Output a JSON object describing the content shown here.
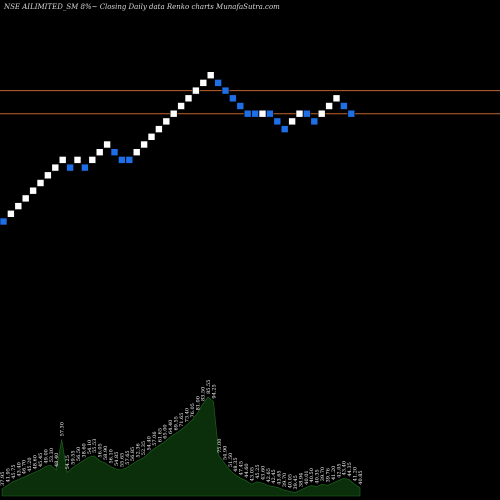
{
  "chart_data": {
    "type": "renko",
    "title": "NSE AILIMITED_SM 8%~   Closing Daily data  Renko  charts MunafaSutra.com",
    "colors": {
      "background": "#000000",
      "up_brick": "#ffffff",
      "down_brick": "#1e6ee6",
      "level_line": "#c0642a",
      "volume_fill": "#0b2e0b",
      "volume_edge": "#1f6b1f",
      "volume_label": "#ffffff"
    },
    "brick_levels": [
      1,
      2,
      3,
      4,
      5,
      6,
      7,
      8,
      9,
      8,
      9,
      8,
      9,
      10,
      11,
      10,
      9,
      9,
      10,
      11,
      12,
      13,
      14,
      15,
      16,
      17,
      18,
      19,
      20,
      19,
      18,
      17,
      16,
      15,
      15,
      15,
      15,
      14,
      13,
      14,
      15,
      15,
      14,
      15,
      16,
      17,
      16,
      15
    ],
    "brick_directions": [
      "down",
      "up",
      "up",
      "up",
      "up",
      "up",
      "up",
      "up",
      "up",
      "down",
      "up",
      "down",
      "up",
      "up",
      "up",
      "down",
      "down",
      "down",
      "up",
      "up",
      "up",
      "up",
      "up",
      "up",
      "up",
      "up",
      "up",
      "up",
      "up",
      "down",
      "down",
      "down",
      "down",
      "down",
      "down",
      "up",
      "down",
      "down",
      "down",
      "up",
      "up",
      "down",
      "down",
      "up",
      "up",
      "up",
      "down",
      "down"
    ],
    "horizontal_levels": [
      18,
      15
    ],
    "volume_labels": [
      "37.95",
      "41.95",
      "45.75",
      "43.40",
      "46.70",
      "45.20",
      "48.60",
      "45.45",
      "49.00",
      "53.30",
      "48.40",
      "57.30",
      "54.25",
      "59.55",
      "56.50",
      "38.60",
      "54.10",
      "55.53",
      "56.05",
      "58.90",
      "56.10",
      "54.85",
      "55.65",
      "57.65",
      "56.85",
      "52.36",
      "52.35",
      "54.40",
      "57.06",
      "61.65",
      "65.00",
      "64.40",
      "69.55",
      "71.65",
      "73.40",
      "76.05",
      "81.00",
      "83.50",
      "85.55",
      "94.25",
      "75.00",
      "54.90",
      "51.50",
      "48.35",
      "47.45",
      "44.60",
      "43.05",
      "45.25",
      "43.60",
      "42.65",
      "42.45",
      "43.65",
      "39.70",
      "40.05",
      "39.45",
      "38.94",
      "40.01",
      "40.50",
      "40.35",
      "39.70",
      "39.76",
      "41.20",
      "42.05",
      "43.40",
      "44.35",
      "41.20",
      "40.85"
    ],
    "volume_heights": [
      0.06,
      0.09,
      0.12,
      0.14,
      0.16,
      0.18,
      0.2,
      0.22,
      0.25,
      0.26,
      0.22,
      0.48,
      0.2,
      0.24,
      0.27,
      0.3,
      0.33,
      0.34,
      0.3,
      0.28,
      0.25,
      0.23,
      0.22,
      0.24,
      0.27,
      0.3,
      0.32,
      0.36,
      0.4,
      0.43,
      0.46,
      0.5,
      0.53,
      0.56,
      0.6,
      0.64,
      0.7,
      0.78,
      0.84,
      0.8,
      0.34,
      0.28,
      0.22,
      0.18,
      0.15,
      0.13,
      0.1,
      0.12,
      0.11,
      0.09,
      0.08,
      0.07,
      0.05,
      0.04,
      0.03,
      0.05,
      0.07,
      0.09,
      0.08,
      0.1,
      0.09,
      0.11,
      0.13,
      0.15,
      0.14,
      0.1,
      0.07
    ]
  }
}
